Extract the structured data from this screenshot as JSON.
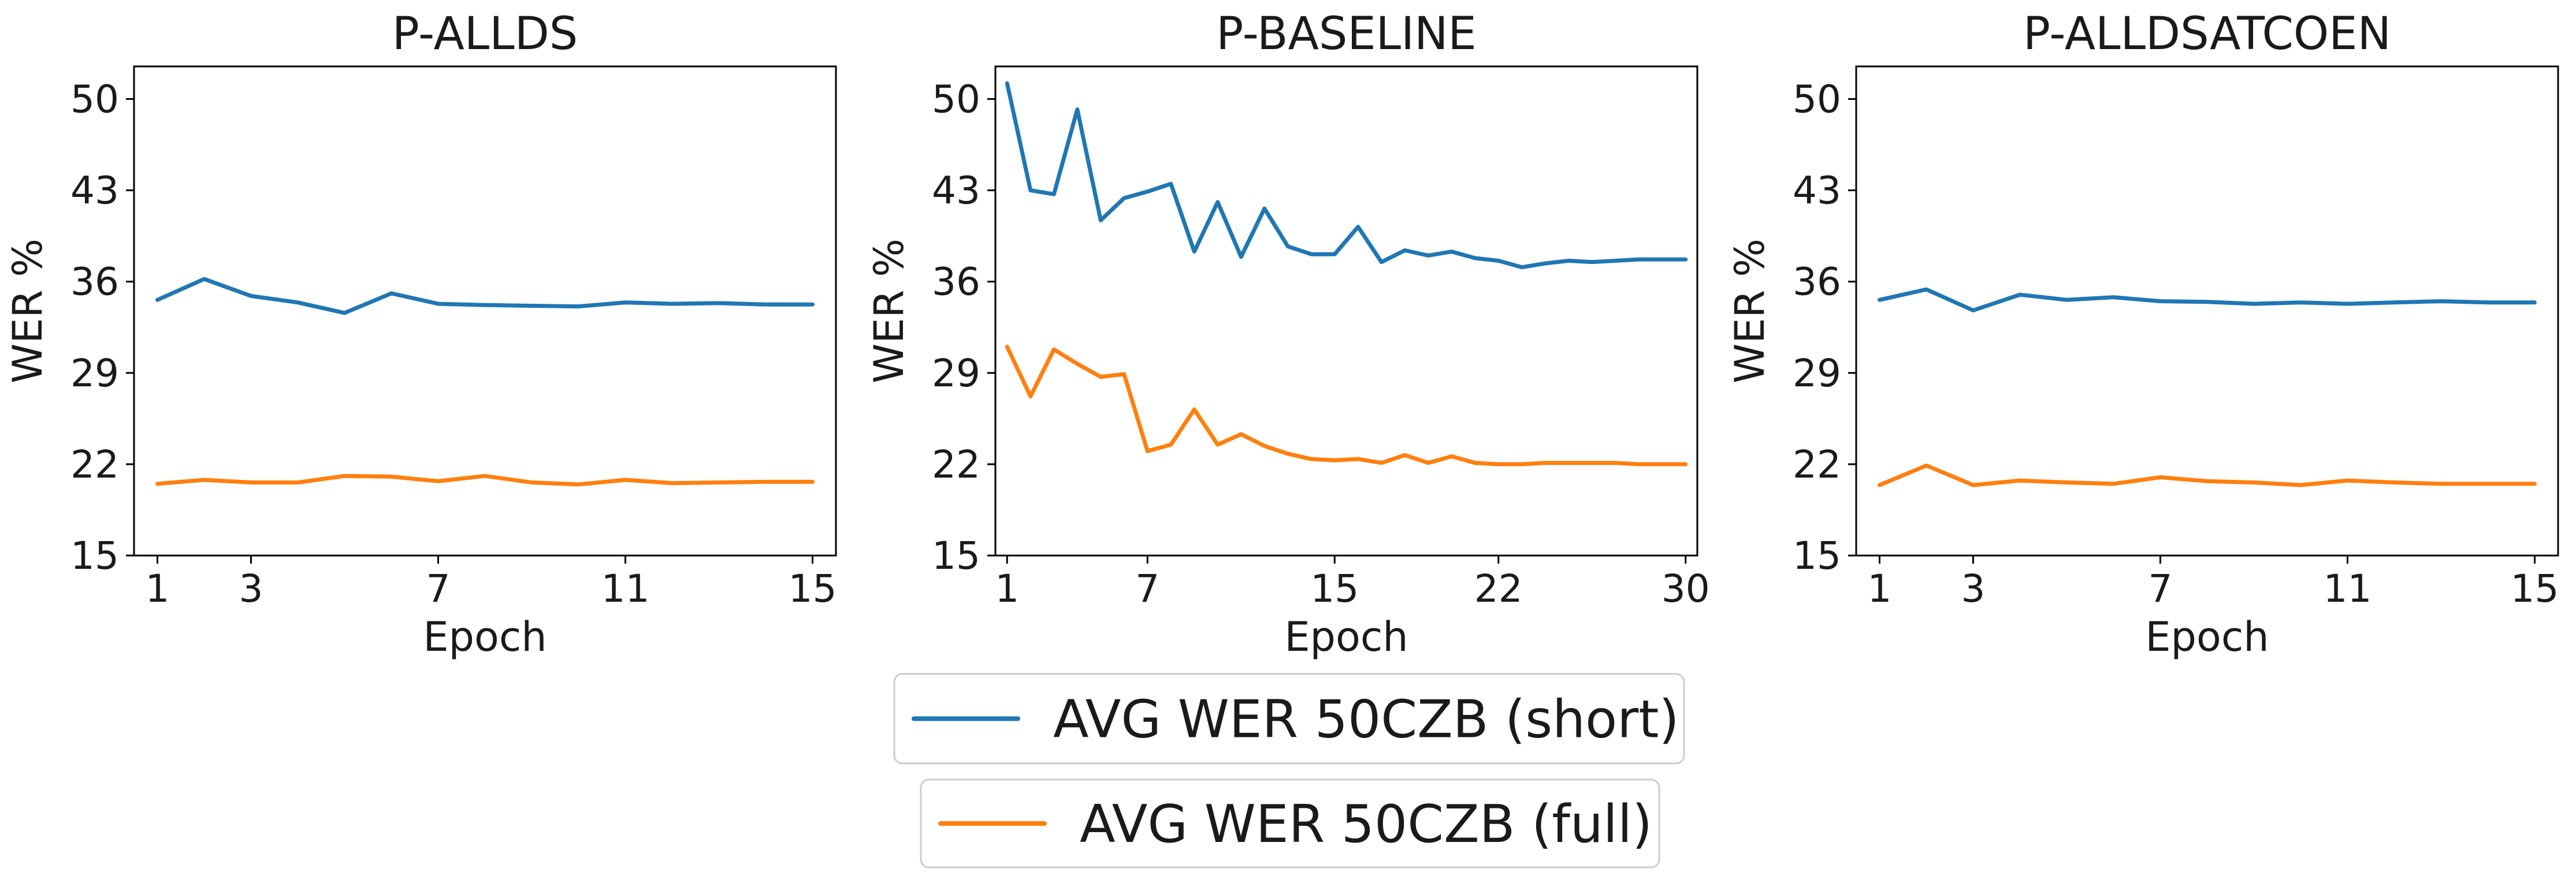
{
  "colors": {
    "short": "#1f77b4",
    "full": "#ff7f0e",
    "axis": "#000000",
    "legend_border": "#cccccc"
  },
  "legend": {
    "placement": "bottom-center",
    "entries": [
      {
        "key": "short",
        "label": "AVG WER 50CZB (short)"
      },
      {
        "key": "full",
        "label": "AVG WER 50CZB (full)"
      }
    ]
  },
  "chart_data": [
    {
      "type": "line",
      "title": "P-ALLDS",
      "xlabel": "Epoch",
      "ylabel": "WER %",
      "xlim": [
        0.5,
        15.5
      ],
      "ylim": [
        15,
        52.5
      ],
      "xticks": [
        1,
        3,
        7,
        11,
        15
      ],
      "yticks": [
        15,
        22,
        29,
        36,
        43,
        50
      ],
      "grid": false,
      "x": [
        1,
        2,
        3,
        4,
        5,
        6,
        7,
        8,
        9,
        10,
        11,
        12,
        13,
        14,
        15
      ],
      "series": [
        {
          "name": "AVG WER 50CZB (short)",
          "key": "short",
          "values": [
            34.6,
            36.2,
            34.9,
            34.4,
            33.6,
            35.1,
            34.3,
            34.2,
            34.15,
            34.1,
            34.4,
            34.3,
            34.35,
            34.25,
            34.25
          ]
        },
        {
          "name": "AVG WER 50CZB (full)",
          "key": "full",
          "values": [
            20.5,
            20.8,
            20.6,
            20.6,
            21.1,
            21.05,
            20.7,
            21.1,
            20.6,
            20.45,
            20.8,
            20.55,
            20.6,
            20.65,
            20.65
          ]
        }
      ]
    },
    {
      "type": "line",
      "title": "P-BASELINE",
      "xlabel": "Epoch",
      "ylabel": "WER %",
      "xlim": [
        0.5,
        30.5
      ],
      "ylim": [
        15,
        52.5
      ],
      "xticks": [
        1,
        7,
        15,
        22,
        30
      ],
      "yticks": [
        15,
        22,
        29,
        36,
        43,
        50
      ],
      "grid": false,
      "x": [
        1,
        2,
        3,
        4,
        5,
        6,
        7,
        8,
        9,
        10,
        11,
        12,
        13,
        14,
        15,
        16,
        17,
        18,
        19,
        20,
        21,
        22,
        23,
        24,
        25,
        26,
        27,
        28,
        29,
        30
      ],
      "series": [
        {
          "name": "AVG WER 50CZB (short)",
          "key": "short",
          "values": [
            51.2,
            43.0,
            42.7,
            49.2,
            40.7,
            42.4,
            42.9,
            43.5,
            38.3,
            42.1,
            37.9,
            41.6,
            38.7,
            38.1,
            38.1,
            40.2,
            37.5,
            38.4,
            38.0,
            38.3,
            37.8,
            37.6,
            37.1,
            37.4,
            37.6,
            37.5,
            37.6,
            37.7,
            37.7,
            37.7
          ]
        },
        {
          "name": "AVG WER 50CZB (full)",
          "key": "full",
          "values": [
            31.0,
            27.2,
            30.8,
            29.7,
            28.7,
            28.9,
            23.0,
            23.5,
            26.2,
            23.5,
            24.3,
            23.4,
            22.8,
            22.4,
            22.3,
            22.4,
            22.1,
            22.7,
            22.1,
            22.6,
            22.1,
            22.0,
            22.0,
            22.1,
            22.1,
            22.1,
            22.1,
            22.0,
            22.0,
            22.0
          ]
        }
      ]
    },
    {
      "type": "line",
      "title": "P-ALLDSATCOEN",
      "xlabel": "Epoch",
      "ylabel": "WER %",
      "xlim": [
        0.5,
        15.5
      ],
      "ylim": [
        15,
        52.5
      ],
      "xticks": [
        1,
        3,
        7,
        11,
        15
      ],
      "yticks": [
        15,
        22,
        29,
        36,
        43,
        50
      ],
      "grid": false,
      "x": [
        1,
        2,
        3,
        4,
        5,
        6,
        7,
        8,
        9,
        10,
        11,
        12,
        13,
        14,
        15
      ],
      "series": [
        {
          "name": "AVG WER 50CZB (short)",
          "key": "short",
          "values": [
            34.6,
            35.4,
            33.8,
            35.0,
            34.6,
            34.8,
            34.5,
            34.45,
            34.3,
            34.4,
            34.3,
            34.4,
            34.5,
            34.4,
            34.4
          ]
        },
        {
          "name": "AVG WER 50CZB (full)",
          "key": "full",
          "values": [
            20.4,
            21.9,
            20.4,
            20.75,
            20.6,
            20.5,
            21.0,
            20.7,
            20.6,
            20.4,
            20.75,
            20.6,
            20.5,
            20.5,
            20.5
          ]
        }
      ]
    }
  ]
}
